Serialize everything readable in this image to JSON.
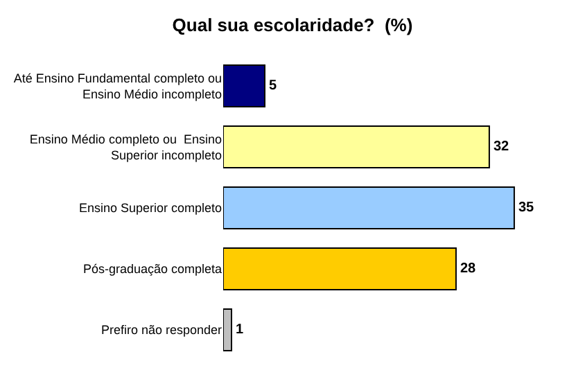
{
  "chart_data": {
    "type": "bar",
    "orientation": "horizontal",
    "title": "Qual sua escolaridade?  (%)",
    "categories": [
      "Até Ensino Fundamental completo ou\nEnsino Médio incompleto",
      "Ensino Médio completo ou  Ensino\nSuperior incompleto",
      "Ensino Superior completo",
      "Pós-graduação completa",
      "Prefiro não responder"
    ],
    "values": [
      5,
      32,
      35,
      28,
      1
    ],
    "colors": [
      "#000080",
      "#ffff99",
      "#99ccff",
      "#ffcc00",
      "#c0c0c0"
    ],
    "data_labels": true
  }
}
